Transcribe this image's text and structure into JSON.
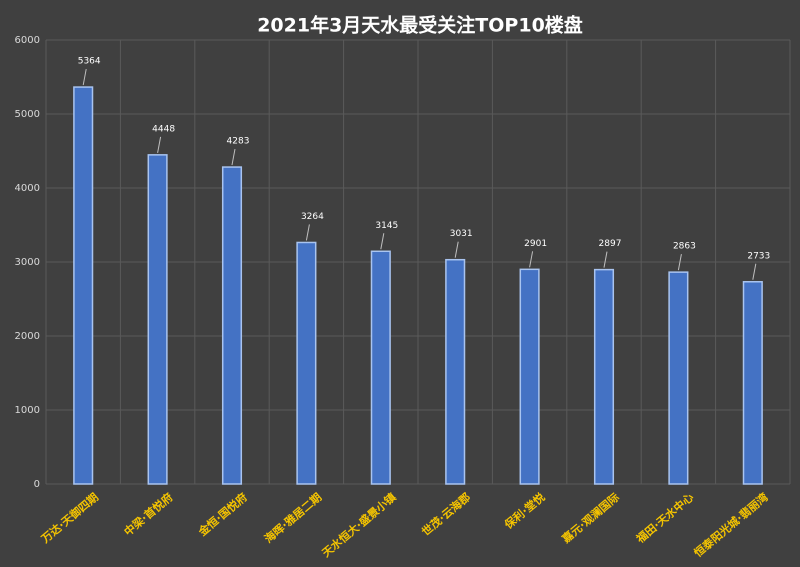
{
  "chart_data": {
    "type": "bar",
    "title": "2021年3月天水最受关注TOP10楼盘",
    "categories": [
      "万达·天御四期",
      "中梁·首悦府",
      "金恒·国悦府",
      "海晖·雅居二期",
      "天水恒大·盛景小镇",
      "世茂·云海郡",
      "保利·堂悦",
      "嘉元·观澜国际",
      "福田·天水中心",
      "恒泰阳光城·翡丽湾"
    ],
    "values": [
      5364,
      4448,
      4283,
      3264,
      3145,
      3031,
      2901,
      2897,
      2863,
      2733
    ],
    "color": "#4472c4",
    "ylim": [
      0,
      6000
    ],
    "yticks": [
      0,
      1000,
      2000,
      3000,
      4000,
      5000,
      6000
    ],
    "grid": true
  }
}
